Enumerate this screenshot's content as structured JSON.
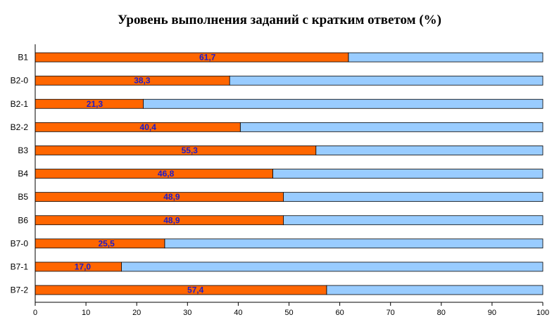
{
  "chart_data": {
    "type": "bar",
    "orientation": "horizontal",
    "stacked_percent": true,
    "title": "Уровень выполнения заданий с кратким ответом (%)",
    "xlabel": "",
    "ylabel": "",
    "categories": [
      "B1",
      "B2-0",
      "B2-1",
      "B2-2",
      "B3",
      "B4",
      "B5",
      "B6",
      "B7-0",
      "B7-1",
      "B7-2"
    ],
    "values": [
      61.7,
      38.3,
      21.3,
      40.4,
      55.3,
      46.8,
      48.9,
      48.9,
      25.5,
      17.0,
      57.4
    ],
    "data_labels": [
      "61,7",
      "38,3",
      "21,3",
      "40,4",
      "55,3",
      "46,8",
      "48,9",
      "48,9",
      "25,5",
      "17,0",
      "57,4"
    ],
    "xlim": [
      0,
      100
    ],
    "xticks": [
      "0",
      "10",
      "20",
      "30",
      "40",
      "50",
      "60",
      "70",
      "80",
      "90",
      "100"
    ],
    "grid": false,
    "legend": "none",
    "colors": {
      "value_bar": "#ff6600",
      "remainder_bar": "#99ccff",
      "data_label": "#1c1ccc",
      "axis": "#000000"
    }
  }
}
